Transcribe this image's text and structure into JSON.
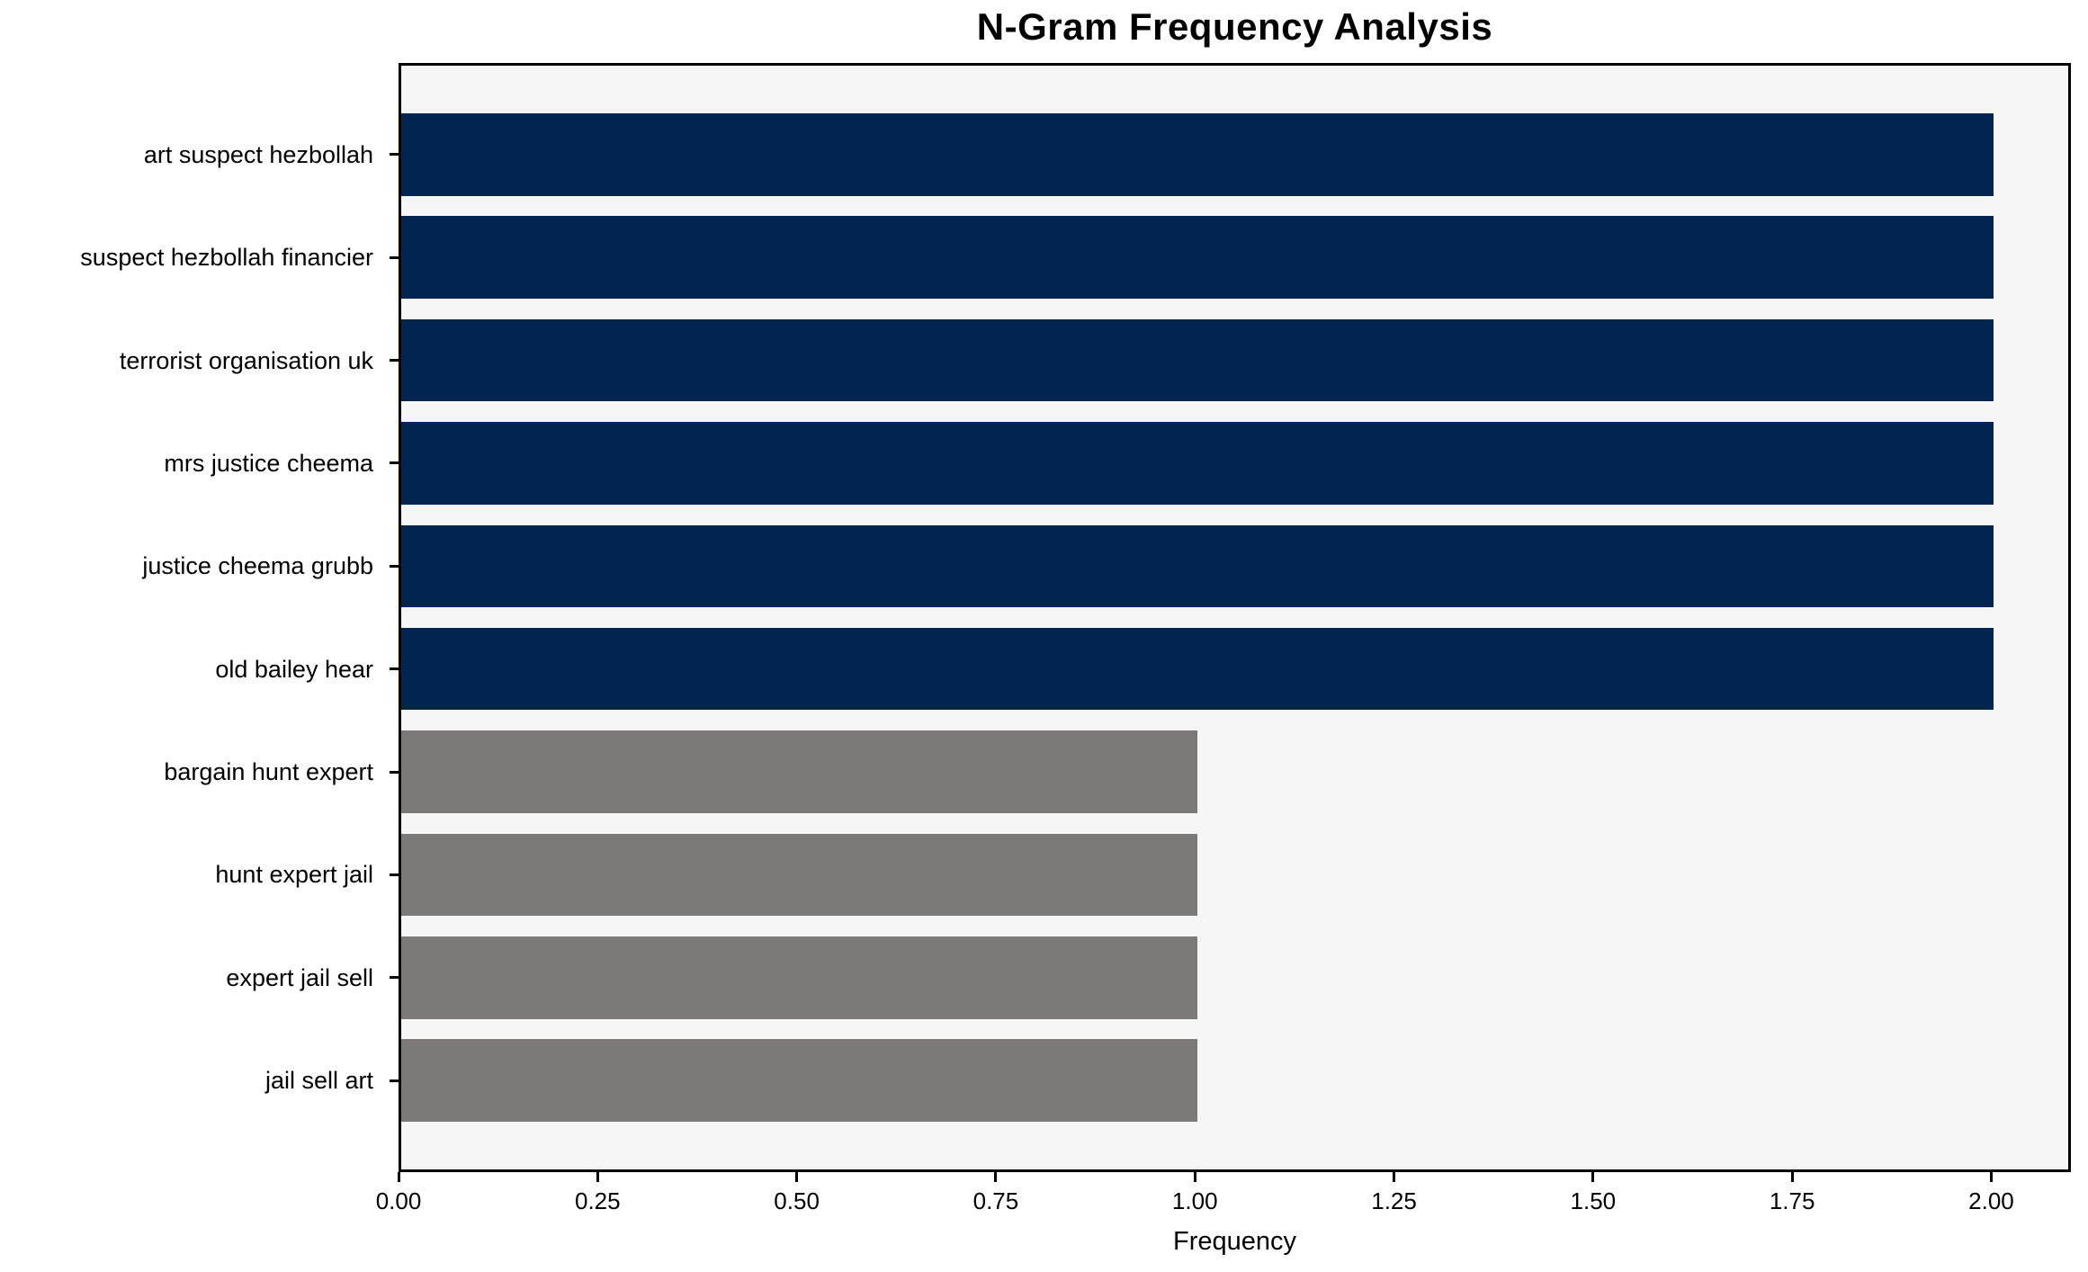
{
  "chart_data": {
    "type": "bar",
    "orientation": "horizontal",
    "title": "N-Gram Frequency Analysis",
    "xlabel": "Frequency",
    "ylabel": "",
    "categories": [
      "art suspect hezbollah",
      "suspect hezbollah financier",
      "terrorist organisation uk",
      "mrs justice cheema",
      "justice cheema grubb",
      "old bailey hear",
      "bargain hunt expert",
      "hunt expert jail",
      "expert jail sell",
      "jail sell art"
    ],
    "values": [
      2,
      2,
      2,
      2,
      2,
      2,
      1,
      1,
      1,
      1
    ],
    "bar_colors": [
      "#01254e",
      "#01254e",
      "#01254e",
      "#01254e",
      "#01254e",
      "#01254e",
      "#7b7a77",
      "#7b7a77",
      "#7b7a77",
      "#7b7a77"
    ],
    "x_tick_values": [
      0,
      0.25,
      0.5,
      0.75,
      1.0,
      1.25,
      1.5,
      1.75,
      2.0
    ],
    "x_tick_labels": [
      "0.00",
      "0.25",
      "0.50",
      "0.75",
      "1.00",
      "1.25",
      "1.50",
      "1.75",
      "2.00"
    ],
    "xlim": [
      0,
      2.1
    ],
    "grid": false,
    "legend": false,
    "colors": {
      "bar_high": "#01254e",
      "bar_low": "#7b7a77",
      "plot_background": "#f6f5f5",
      "figure_background": "#ffffff",
      "axis": "#000000",
      "text": "#000000"
    }
  }
}
